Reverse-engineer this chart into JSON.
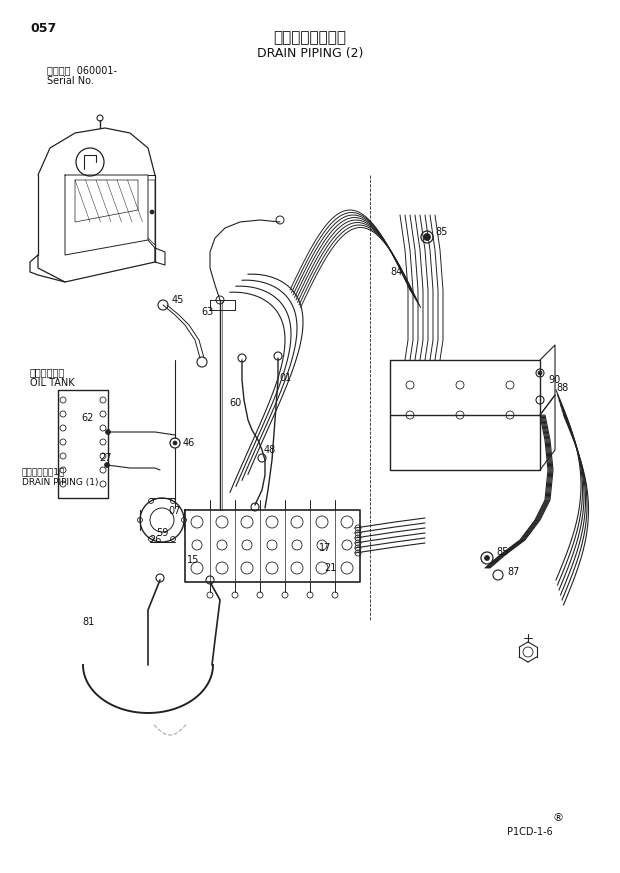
{
  "page_number": "057",
  "title_japanese": "ドレン配管（２）",
  "title_english": "DRAIN PIPING (2)",
  "serial_label": "適用号機  060001-",
  "serial_label2": "Serial No.",
  "footer_code": "P1CD-1-6",
  "background_color": "#ffffff",
  "line_color": "#222222",
  "text_color": "#111111",
  "label_oil_tank_jp": "オイルタンク",
  "label_oil_tank_en": "OIL TANK",
  "label_drain_jp": "ドレン配管（1）",
  "label_drain_en": "DRAIN PIPING (1)"
}
